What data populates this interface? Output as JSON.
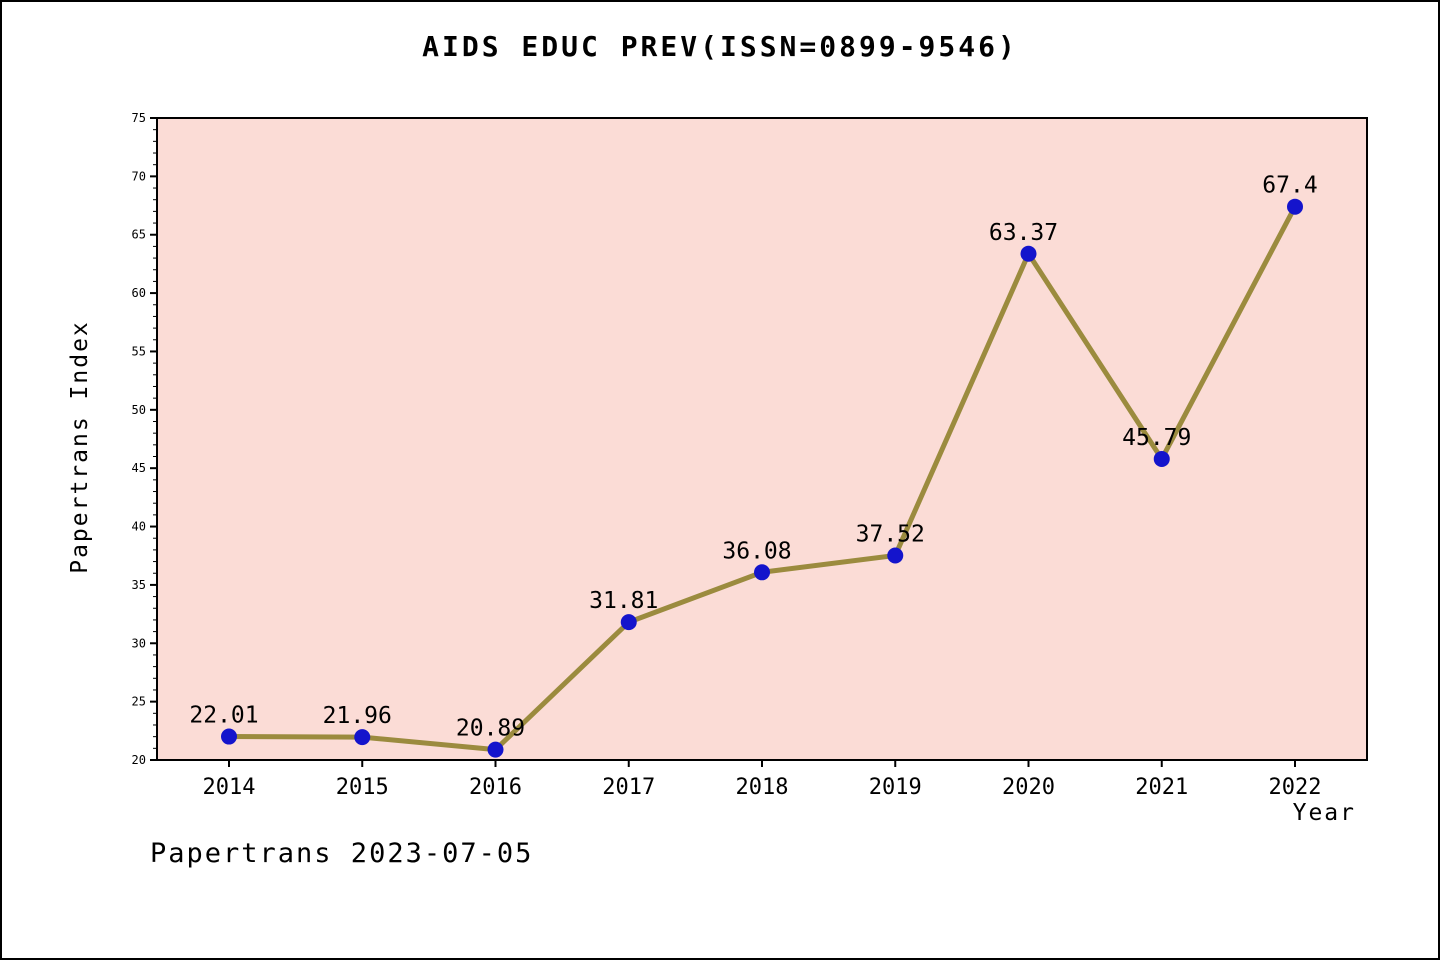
{
  "figure": {
    "title": "AIDS EDUC PREV(ISSN=0899-9546)",
    "footer": "Papertrans 2023-07-05"
  },
  "chart_data": {
    "type": "line",
    "title": "AIDS EDUC PREV(ISSN=0899-9546)",
    "x": [
      2014,
      2015,
      2016,
      2017,
      2018,
      2019,
      2020,
      2021,
      2022
    ],
    "series": [
      {
        "name": "Papertrans Index",
        "values": [
          22.01,
          21.96,
          20.89,
          31.81,
          36.08,
          37.52,
          63.37,
          45.79,
          67.4
        ]
      }
    ],
    "point_labels": [
      "22.01",
      "21.96",
      "20.89",
      "31.81",
      "36.08",
      "37.52",
      "63.37",
      "45.79",
      "67.4"
    ],
    "xlabel": "Year",
    "ylabel": "Papertrans Index",
    "ylim": [
      20,
      75
    ],
    "ytick_step": 5,
    "ytick_labels": [
      "20",
      "25",
      "30",
      "35",
      "40",
      "45",
      "50",
      "55",
      "60",
      "65",
      "70",
      "75"
    ],
    "grid": false,
    "legend_position": "none",
    "colors": {
      "line": "#9b8b3e",
      "marker": "#1414cc",
      "plot_bg": "#fbdcd6",
      "plot_border": "#000000",
      "text": "#000000"
    }
  }
}
